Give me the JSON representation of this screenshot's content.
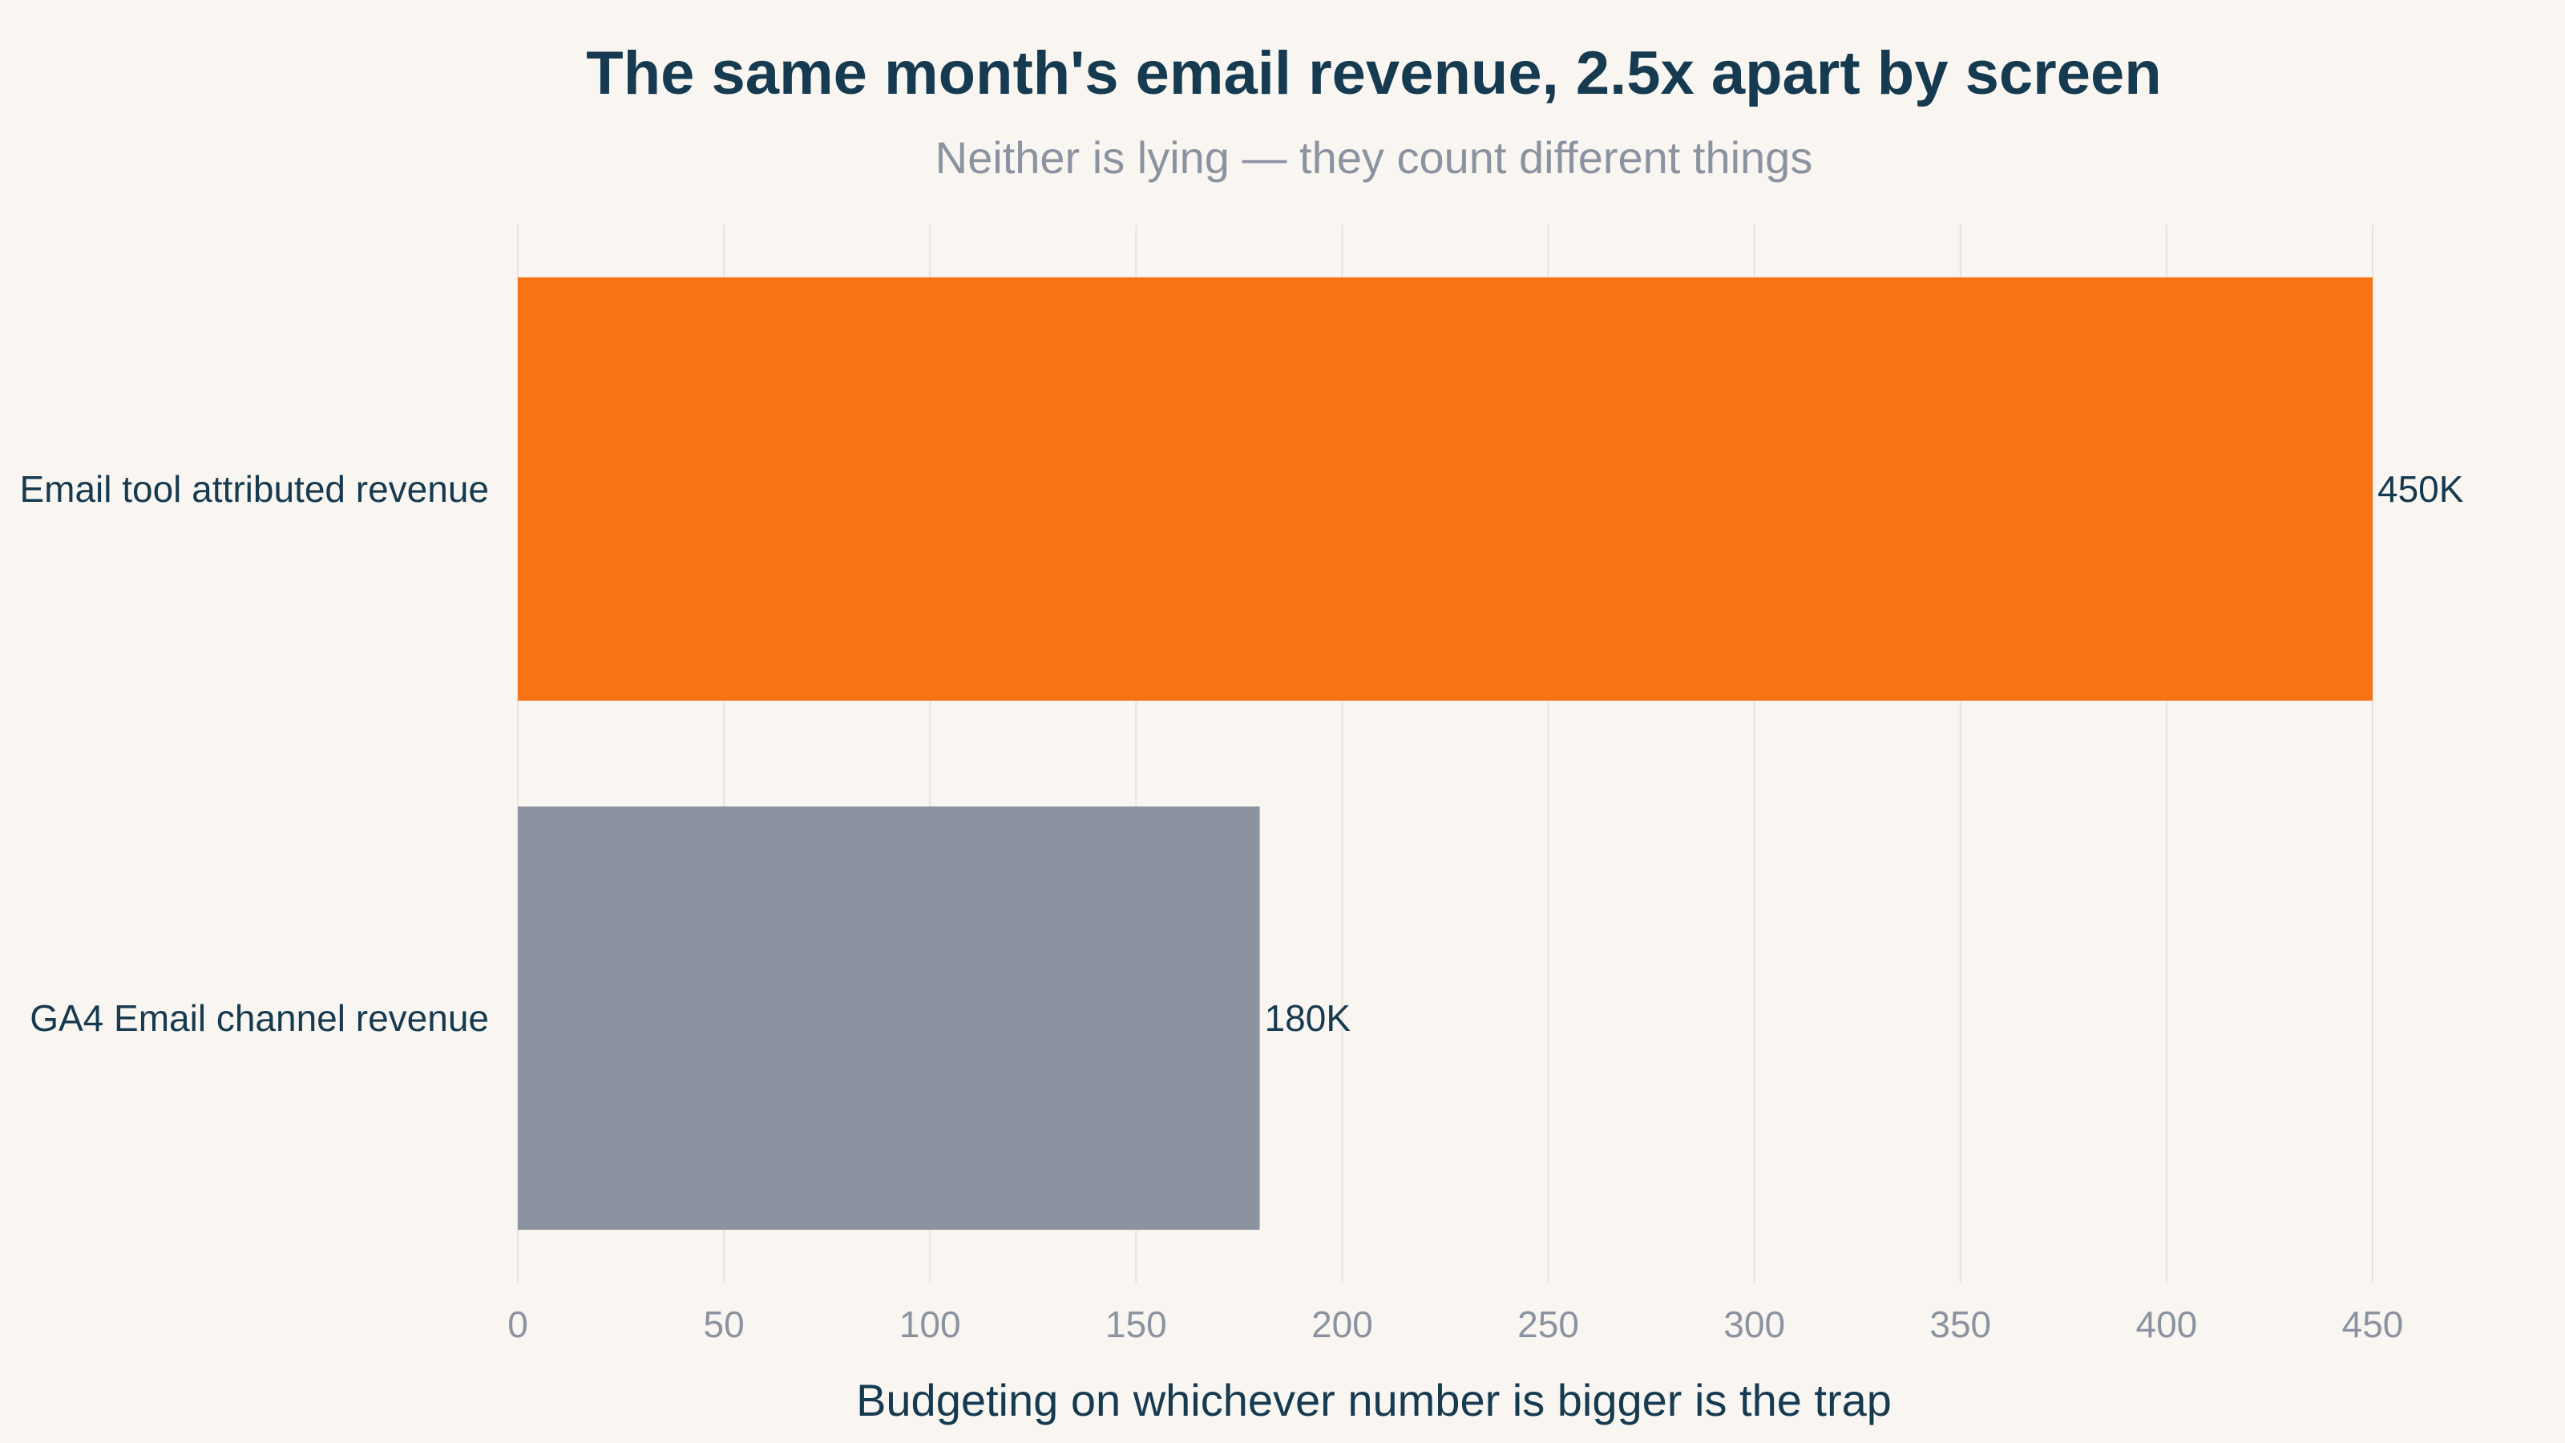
{
  "chart_data": {
    "type": "bar",
    "orientation": "horizontal",
    "title": "The same month's email revenue, 2.5x apart by screen",
    "subtitle": "Neither is lying — they count different things",
    "xlabel": "Budgeting on whichever number is bigger is the trap",
    "ylabel": "",
    "categories": [
      "Email tool attributed revenue",
      "GA4 Email channel revenue"
    ],
    "values": [
      450,
      180
    ],
    "data_labels": [
      "450K",
      "180K"
    ],
    "bar_colors": [
      "#f97316",
      "#8b93a1"
    ],
    "xlim": [
      0,
      450
    ],
    "x_ticks": [
      0,
      50,
      100,
      150,
      200,
      250,
      300,
      350,
      400,
      450
    ],
    "x_tick_labels": [
      "0",
      "50",
      "100",
      "150",
      "200",
      "250",
      "300",
      "350",
      "400",
      "450"
    ],
    "grid": "vertical",
    "legend": "none"
  },
  "colors": {
    "background": "#f9f6f1",
    "title": "#163a50",
    "muted": "#8b93a1",
    "grid": "#e6e3de"
  }
}
